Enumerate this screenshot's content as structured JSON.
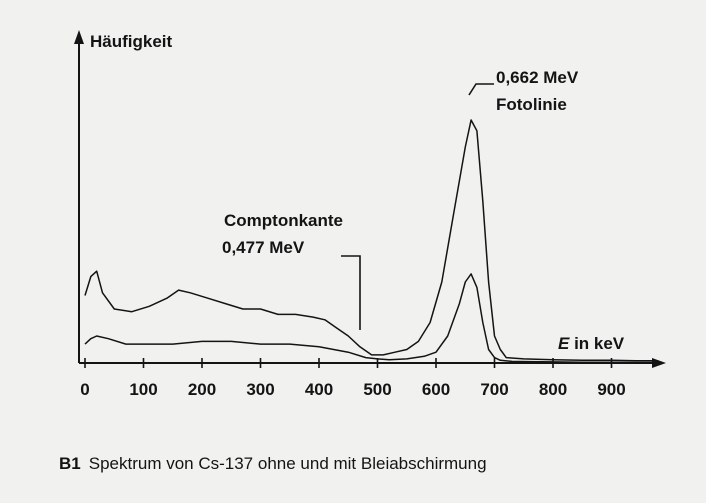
{
  "chart_data": {
    "type": "line",
    "ylabel": "Häufigkeit",
    "xlabel_prefix": "E",
    "xlabel_suffix": " in keV",
    "xticks": [
      0,
      100,
      200,
      300,
      400,
      500,
      600,
      700,
      800,
      900
    ],
    "xlim": [
      0,
      1000
    ],
    "ylim": [
      0,
      100
    ],
    "grid": false,
    "series": [
      {
        "x": [
          0,
          10,
          20,
          30,
          50,
          80,
          110,
          140,
          160,
          180,
          210,
          240,
          270,
          300,
          330,
          360,
          390,
          410,
          430,
          450,
          470,
          490,
          510,
          530,
          550,
          570,
          590,
          610,
          630,
          650,
          660,
          670,
          680,
          690,
          700,
          710,
          720,
          750,
          800,
          850,
          900,
          950,
          980
        ],
        "y": [
          25,
          32,
          34,
          26,
          20,
          19,
          21,
          24,
          27,
          26,
          24,
          22,
          20,
          20,
          18,
          18,
          17,
          16,
          13,
          10,
          6,
          3,
          3,
          4,
          5,
          8,
          15,
          30,
          55,
          80,
          90,
          86,
          60,
          30,
          10,
          5,
          2,
          1.5,
          1.2,
          1,
          1,
          0.8,
          0.8
        ]
      },
      {
        "x": [
          0,
          10,
          20,
          40,
          70,
          100,
          150,
          200,
          250,
          300,
          350,
          400,
          450,
          480,
          500,
          520,
          550,
          580,
          600,
          620,
          640,
          650,
          660,
          670,
          680,
          690,
          700,
          710,
          730,
          760,
          800,
          850,
          900,
          950,
          980
        ],
        "y": [
          7,
          9,
          10,
          9,
          7,
          7,
          7,
          8,
          8,
          7,
          7,
          6,
          4,
          2,
          1.5,
          1.2,
          1.5,
          2.5,
          4,
          10,
          22,
          30,
          33,
          28,
          15,
          5,
          2,
          1,
          0.6,
          0.5,
          0.4,
          0.3,
          0.3,
          0.2,
          0.2
        ]
      }
    ],
    "annotations": [
      {
        "line1": "Comptonkante",
        "line2": "0,477 MeV",
        "x": 477,
        "y": 12
      },
      {
        "line1": "0,662 MeV",
        "line2": "Fotolinie",
        "x": 662,
        "y": 90
      }
    ]
  },
  "caption": {
    "label": "B1",
    "text": "Spektrum von Cs-137 ohne und mit Bleiabschirmung"
  }
}
